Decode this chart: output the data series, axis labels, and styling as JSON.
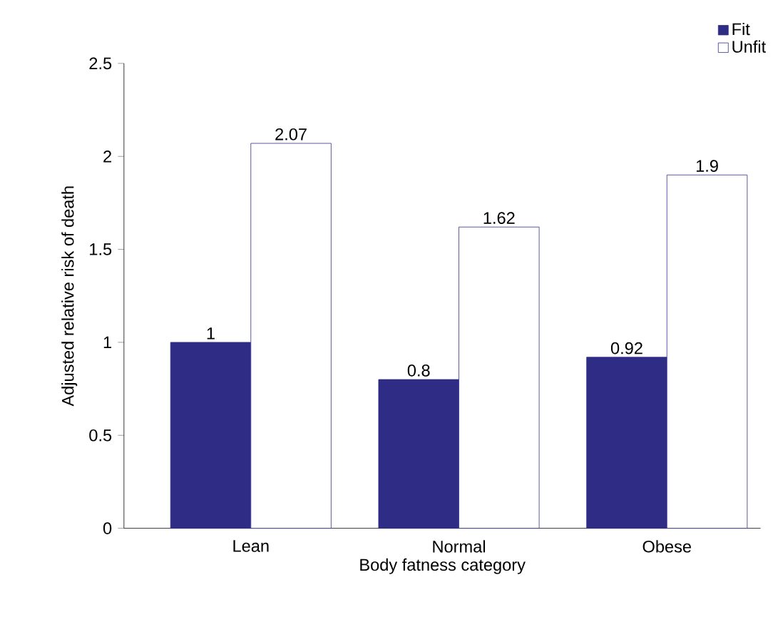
{
  "chart_data": {
    "type": "bar",
    "xlabel": "Body fatness category",
    "ylabel": "Adjusted relative risk of death",
    "categories": [
      "Lean",
      "Normal",
      "Obese"
    ],
    "series": [
      {
        "name": "Fit",
        "color": "#2e2c85",
        "values": [
          1,
          0.8,
          0.92
        ]
      },
      {
        "name": "Unfit",
        "color": "#ffffff",
        "values": [
          2.07,
          1.62,
          1.9
        ]
      }
    ],
    "ylim": [
      0,
      2.5
    ],
    "yticks": [
      0,
      0.5,
      1,
      1.5,
      2,
      2.5
    ],
    "grid": false,
    "legend": "top right",
    "data_labels": true
  }
}
